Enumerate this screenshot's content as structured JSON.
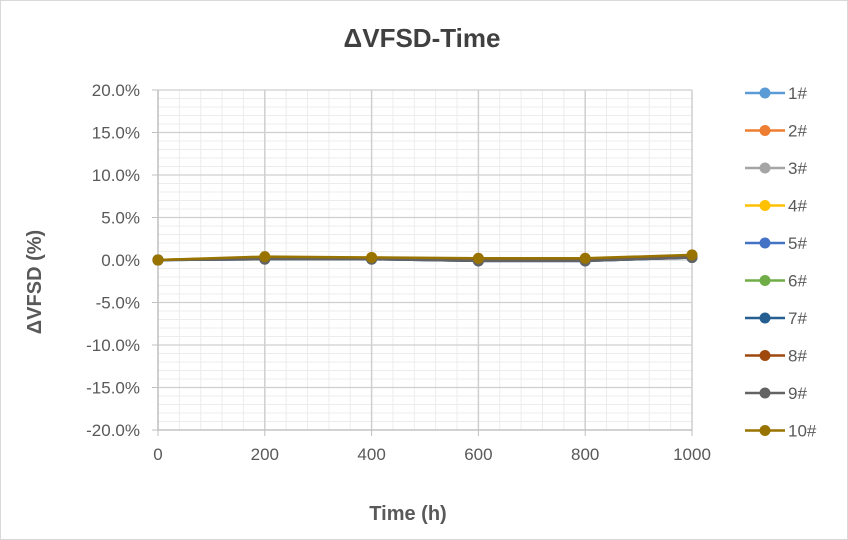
{
  "chart_data": {
    "type": "line",
    "title": "ΔVFSD-Time",
    "xlabel": "Time (h)",
    "ylabel": "ΔVFSD (%)",
    "x": [
      0,
      200,
      400,
      600,
      800,
      1000
    ],
    "xlim": [
      0,
      1000
    ],
    "ylim": [
      -20,
      20
    ],
    "x_ticks": [
      "0",
      "200",
      "400",
      "600",
      "800",
      "1000"
    ],
    "y_ticks": [
      "-20.0%",
      "-15.0%",
      "-10.0%",
      "-5.0%",
      "0.0%",
      "5.0%",
      "10.0%",
      "15.0%",
      "20.0%"
    ],
    "grid": true,
    "legend_position": "right",
    "series": [
      {
        "name": "1#",
        "color": "#5B9BD5",
        "values": [
          0,
          0.2,
          0.2,
          0.0,
          0.0,
          0.4
        ]
      },
      {
        "name": "2#",
        "color": "#ED7D31",
        "values": [
          0,
          0.3,
          0.2,
          0.1,
          0.1,
          0.5
        ]
      },
      {
        "name": "3#",
        "color": "#A5A5A5",
        "values": [
          0,
          0.2,
          0.1,
          0.0,
          0.0,
          0.4
        ]
      },
      {
        "name": "4#",
        "color": "#FFC000",
        "values": [
          0,
          0.3,
          0.3,
          0.1,
          0.1,
          0.5
        ]
      },
      {
        "name": "5#",
        "color": "#4472C4",
        "values": [
          0,
          0.1,
          0.1,
          -0.1,
          -0.1,
          0.3
        ]
      },
      {
        "name": "6#",
        "color": "#70AD47",
        "values": [
          0,
          0.2,
          0.2,
          0.0,
          0.1,
          0.4
        ]
      },
      {
        "name": "7#",
        "color": "#255E91",
        "values": [
          0,
          0.1,
          0.1,
          -0.1,
          -0.1,
          0.3
        ]
      },
      {
        "name": "8#",
        "color": "#9E480E",
        "values": [
          0,
          0.3,
          0.2,
          0.1,
          0.1,
          0.5
        ]
      },
      {
        "name": "9#",
        "color": "#636363",
        "values": [
          0,
          0.1,
          0.1,
          -0.1,
          -0.1,
          0.3
        ]
      },
      {
        "name": "10#",
        "color": "#997300",
        "values": [
          0,
          0.4,
          0.3,
          0.2,
          0.2,
          0.6
        ]
      }
    ]
  }
}
